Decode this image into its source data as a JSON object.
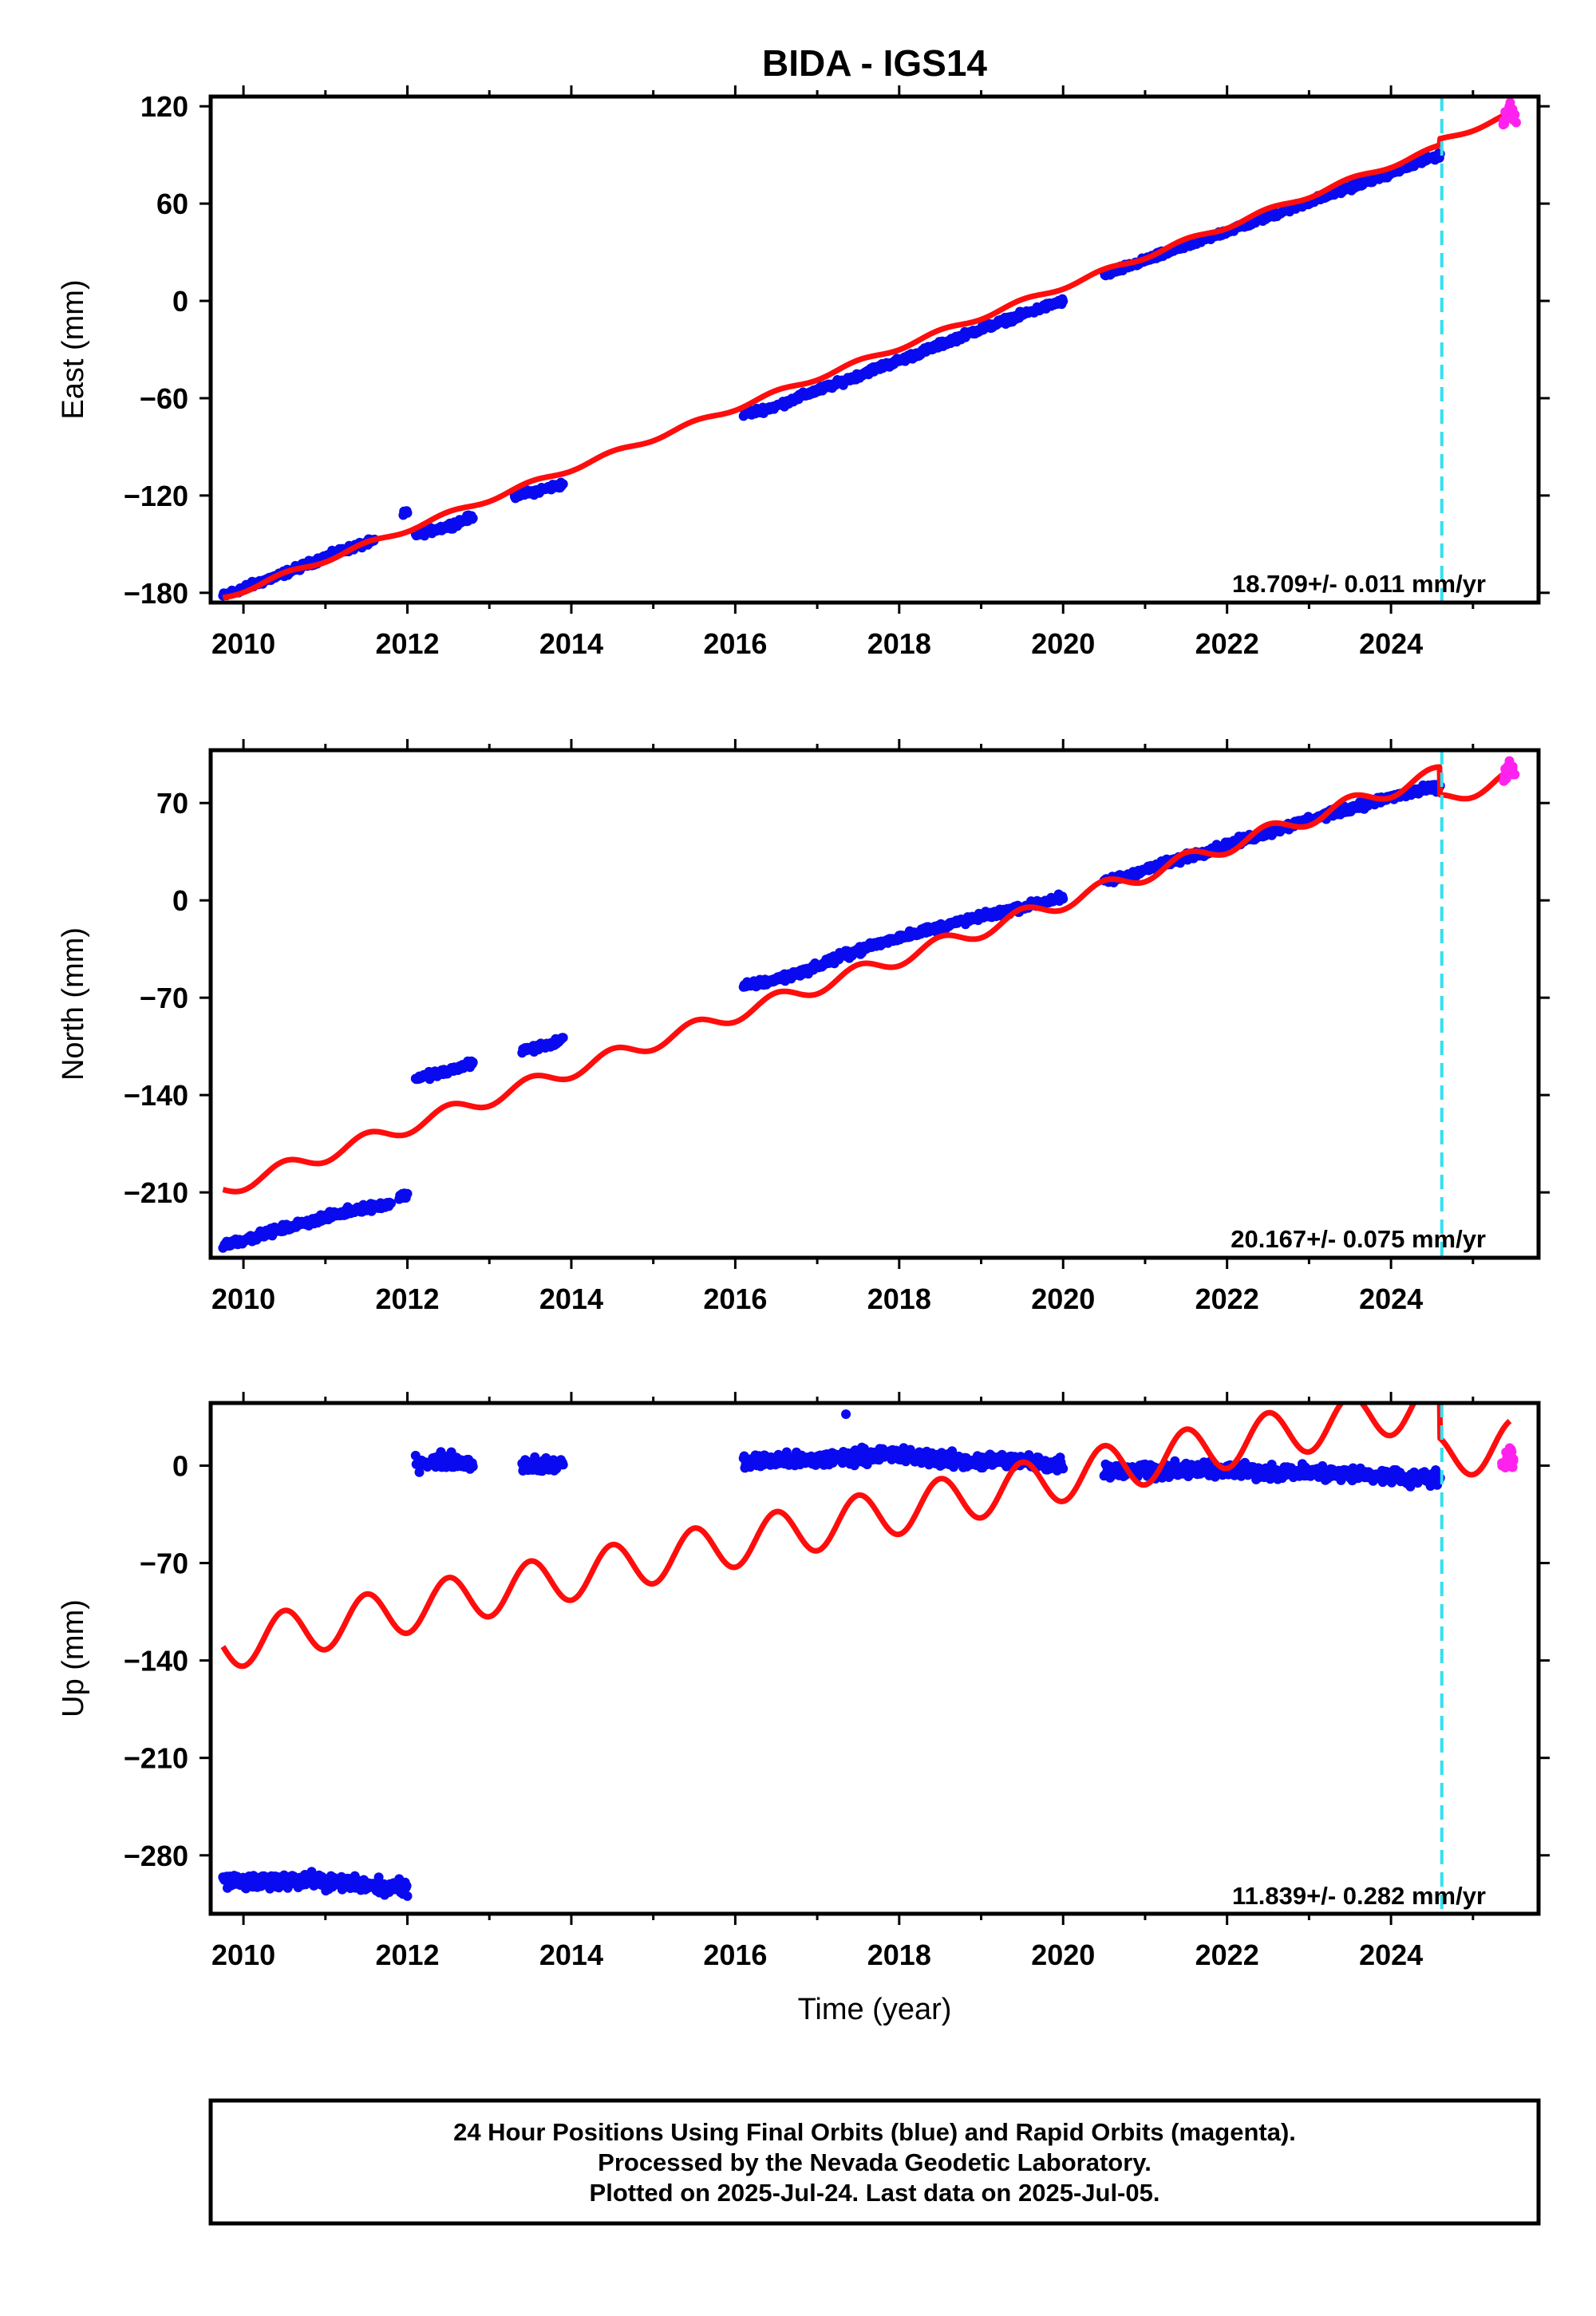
{
  "title": "BIDA - IGS14",
  "chart_data": [
    {
      "type": "scatter",
      "component": "East",
      "ylabel": "East (mm)",
      "xlabel": "",
      "xlim": [
        2009.6,
        2025.8
      ],
      "ylim": [
        -186,
        126
      ],
      "yticks": [
        120,
        60,
        0,
        -60,
        -120,
        -180
      ],
      "ytick_labels": [
        "120",
        "60",
        "0",
        "−60",
        "−120",
        "−180"
      ],
      "xticks": [
        2010,
        2012,
        2014,
        2016,
        2018,
        2020,
        2022,
        2024
      ],
      "xtick_labels": [
        "2010",
        "2012",
        "2014",
        "2016",
        "2018",
        "2020",
        "2022",
        "2024"
      ],
      "rate_text": "18.709+/- 0.011 mm/yr",
      "final_segments": [
        {
          "x": [
            2009.75,
            2010.0,
            2010.4,
            2010.8,
            2011.2,
            2011.6
          ],
          "y": [
            -182,
            -177,
            -170,
            -162,
            -154,
            -148
          ]
        },
        {
          "x": [
            2011.95,
            2012.0
          ],
          "y": [
            -132,
            -130
          ]
        },
        {
          "x": [
            2012.1,
            2012.5,
            2012.8
          ],
          "y": [
            -144,
            -139,
            -133
          ]
        },
        {
          "x": [
            2013.3,
            2013.6,
            2013.9
          ],
          "y": [
            -120,
            -117,
            -113
          ]
        },
        {
          "x": [
            2016.1,
            2016.5,
            2016.9,
            2017.3,
            2017.7,
            2018.1,
            2018.5,
            2018.9,
            2019.3,
            2019.7,
            2020.0
          ],
          "y": [
            -70,
            -65,
            -57,
            -50,
            -42,
            -35,
            -27,
            -19,
            -12,
            -5,
            0
          ]
        },
        {
          "x": [
            2020.5,
            2021.0,
            2021.5,
            2022.0,
            2022.5,
            2023.0,
            2023.5,
            2024.0,
            2024.6
          ],
          "y": [
            16,
            25,
            34,
            43,
            52,
            61,
            70,
            79,
            90
          ]
        }
      ],
      "rapid_points": {
        "x": [
          2025.38,
          2025.42,
          2025.46,
          2025.5
        ],
        "y": [
          110,
          116,
          120,
          113
        ]
      },
      "model": {
        "x0": 2009.75,
        "y0": -183,
        "rate": 18.709,
        "annual_amp": 1.5,
        "step": {
          "t": 2024.6,
          "dy": 4
        },
        "x_end": 2025.45
      },
      "break_line": {
        "x": 2024.62
      }
    },
    {
      "type": "scatter",
      "component": "North",
      "ylabel": "North (mm)",
      "xlabel": "",
      "xlim": [
        2009.6,
        2025.8
      ],
      "ylim": [
        -257,
        108
      ],
      "yticks": [
        70,
        0,
        -70,
        -140,
        -210
      ],
      "ytick_labels": [
        "70",
        "0",
        "−70",
        "−140",
        "−210"
      ],
      "xticks": [
        2010,
        2012,
        2014,
        2016,
        2018,
        2020,
        2022,
        2024
      ],
      "xtick_labels": [
        "2010",
        "2012",
        "2014",
        "2016",
        "2018",
        "2020",
        "2022",
        "2024"
      ],
      "rate_text": "20.167+/- 0.075 mm/yr",
      "final_segments": [
        {
          "x": [
            2009.75,
            2010.2,
            2010.6,
            2011.0,
            2011.4,
            2011.8
          ],
          "y": [
            -248,
            -241,
            -234,
            -228,
            -222,
            -218
          ]
        },
        {
          "x": [
            2011.9,
            2012.0
          ],
          "y": [
            -213,
            -212
          ]
        },
        {
          "x": [
            2012.1,
            2012.5,
            2012.8
          ],
          "y": [
            -128,
            -123,
            -117
          ]
        },
        {
          "x": [
            2013.4,
            2013.7,
            2013.9
          ],
          "y": [
            -108,
            -104,
            -100
          ]
        },
        {
          "x": [
            2016.1,
            2016.5,
            2016.9,
            2017.3,
            2017.7,
            2018.1,
            2018.5,
            2018.9,
            2019.3,
            2019.7,
            2020.0
          ],
          "y": [
            -62,
            -57,
            -50,
            -40,
            -32,
            -25,
            -19,
            -13,
            -8,
            -2,
            2
          ]
        },
        {
          "x": [
            2020.5,
            2021.0,
            2021.5,
            2022.0,
            2022.5,
            2023.0,
            2023.5,
            2024.0,
            2024.6
          ],
          "y": [
            13,
            22,
            31,
            40,
            49,
            58,
            66,
            74,
            82
          ]
        }
      ],
      "rapid_points": {
        "x": [
          2025.38,
          2025.42,
          2025.46,
          2025.5
        ],
        "y": [
          88,
          94,
          97,
          92
        ]
      },
      "model": {
        "x0": 2009.75,
        "y0": -208,
        "rate": 20.167,
        "annual_amp": 5.5,
        "step": {
          "t": 2024.6,
          "dy": -20
        },
        "x_end": 2025.45
      },
      "break_line": {
        "x": 2024.62
      }
    },
    {
      "type": "scatter",
      "component": "Up",
      "ylabel": "Up (mm)",
      "xlabel": "Time (year)",
      "xlim": [
        2009.6,
        2025.8
      ],
      "ylim": [
        -322,
        45
      ],
      "yticks": [
        0,
        -70,
        -140,
        -210,
        -280
      ],
      "ytick_labels": [
        "0",
        "−70",
        "−140",
        "−210",
        "−280"
      ],
      "xticks": [
        2010,
        2012,
        2014,
        2016,
        2018,
        2020,
        2022,
        2024
      ],
      "xtick_labels": [
        "2010",
        "2012",
        "2014",
        "2016",
        "2018",
        "2020",
        "2022",
        "2024"
      ],
      "rate_text": "11.839+/- 0.282 mm/yr",
      "final_segments": [
        {
          "x": [
            2009.75,
            2010.2,
            2010.6,
            2011.0,
            2011.4,
            2011.85
          ],
          "y": [
            -298,
            -300,
            -297,
            -299,
            -301,
            -303
          ]
        },
        {
          "x": [
            2011.9,
            2012.0
          ],
          "y": [
            -303,
            -305
          ]
        },
        {
          "x": [
            2012.1,
            2012.5,
            2012.8
          ],
          "y": [
            2,
            4,
            1
          ]
        },
        {
          "x": [
            2013.4,
            2013.7,
            2013.9
          ],
          "y": [
            1,
            0,
            2
          ]
        },
        {
          "x": [
            2016.1,
            2016.5,
            2016.9,
            2017.3,
            2017.7,
            2018.1,
            2018.5,
            2018.9,
            2019.3,
            2019.7,
            2020.0
          ],
          "y": [
            2,
            4,
            3,
            6,
            8,
            7,
            5,
            3,
            4,
            2,
            1
          ]
        },
        {
          "x": [
            2020.5,
            2021.0,
            2021.5,
            2022.0,
            2022.5,
            2023.0,
            2023.5,
            2024.0,
            2024.6
          ],
          "y": [
            -3,
            -3,
            -3,
            -4,
            -4,
            -5,
            -6,
            -8,
            -9
          ]
        }
      ],
      "outliers": {
        "x": [
          2017.35
        ],
        "y": [
          37
        ]
      },
      "rapid_points": {
        "x": [
          2025.38,
          2025.42,
          2025.46,
          2025.5
        ],
        "y": [
          -2,
          8,
          13,
          1
        ]
      },
      "model": {
        "x0": 2009.75,
        "y0": -130,
        "rate": 11.839,
        "annual_amp": 17,
        "step": {
          "t": 2024.6,
          "dy": -40
        },
        "x_end": 2025.45
      },
      "break_line": {
        "x": 2024.62
      }
    }
  ],
  "footer": {
    "line1": "24 Hour Positions Using Final Orbits (blue) and Rapid Orbits (magenta).",
    "line2": "Processed by the Nevada Geodetic Laboratory.",
    "line3": "Plotted on 2025-Jul-24. Last data on 2025-Jul-05."
  },
  "colors": {
    "final": "#0a0af0",
    "rapid": "#ff22ee",
    "model": "#ff0d0d",
    "break_line": "#33e0f0",
    "frame": "#000000"
  }
}
